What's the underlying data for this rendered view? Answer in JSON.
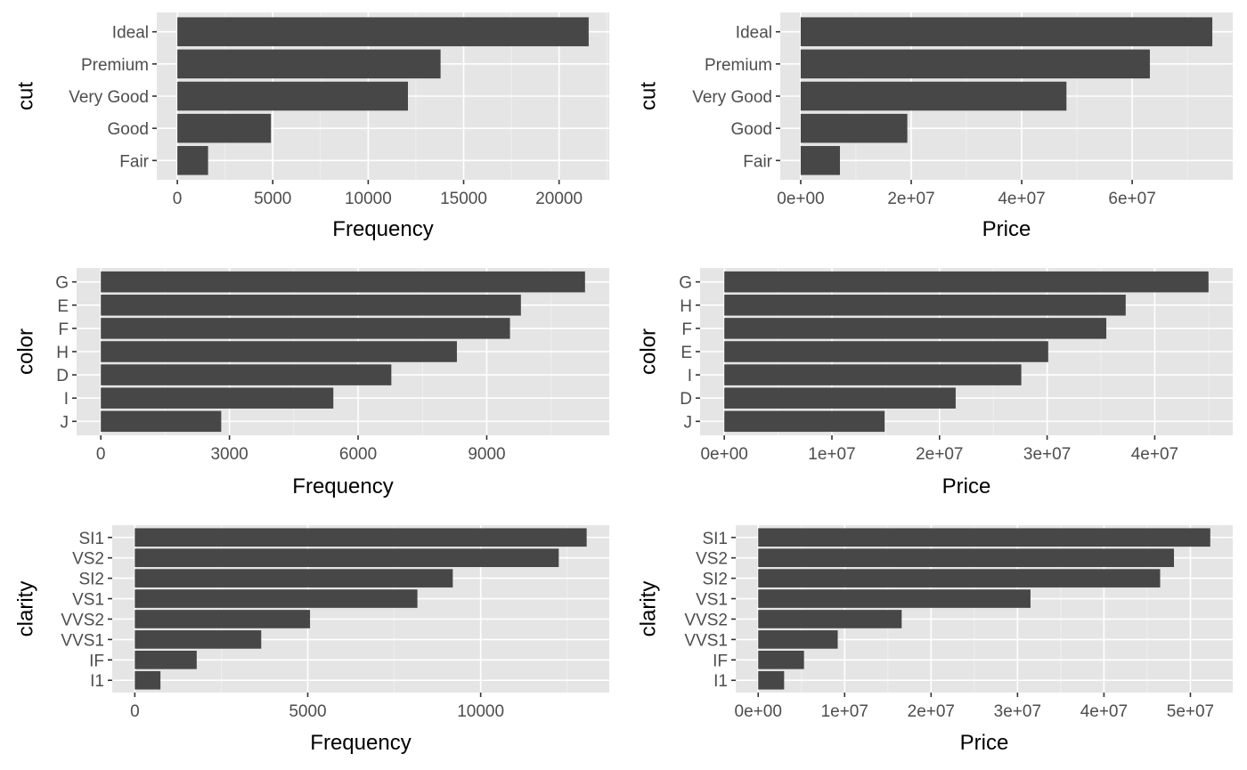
{
  "chart_data": [
    {
      "type": "bar",
      "orientation": "horizontal",
      "categories": [
        "Ideal",
        "Premium",
        "Very Good",
        "Good",
        "Fair"
      ],
      "values": [
        21551,
        13791,
        12082,
        4906,
        1610
      ],
      "xlabel": "Frequency",
      "ylabel": "cut",
      "xlim": [
        -1078,
        22629
      ],
      "xticks": [
        0,
        5000,
        10000,
        15000,
        20000
      ],
      "xtick_labels": [
        "0",
        "5000",
        "10000",
        "15000",
        "20000"
      ],
      "grid": true,
      "bar_color": "#474747"
    },
    {
      "type": "bar",
      "orientation": "horizontal",
      "categories": [
        "Ideal",
        "Premium",
        "Very Good",
        "Good",
        "Fair"
      ],
      "values": [
        74500000,
        63200000,
        48100000,
        19300000,
        7100000
      ],
      "xlabel": "Price",
      "ylabel": "cut",
      "xlim": [
        -3700000,
        78200000
      ],
      "xticks": [
        0,
        20000000,
        40000000,
        60000000
      ],
      "xtick_labels": [
        "0e+00",
        "2e+07",
        "4e+07",
        "6e+07"
      ],
      "grid": true,
      "bar_color": "#474747"
    },
    {
      "type": "bar",
      "orientation": "horizontal",
      "categories": [
        "G",
        "E",
        "F",
        "H",
        "D",
        "I",
        "J"
      ],
      "values": [
        11292,
        9797,
        9542,
        8304,
        6775,
        5422,
        2808
      ],
      "xlabel": "Frequency",
      "ylabel": "color",
      "xlim": [
        -565,
        11857
      ],
      "xticks": [
        0,
        3000,
        6000,
        9000
      ],
      "xtick_labels": [
        "0",
        "3000",
        "6000",
        "9000"
      ],
      "grid": true,
      "bar_color": "#474747"
    },
    {
      "type": "bar",
      "orientation": "horizontal",
      "categories": [
        "G",
        "H",
        "F",
        "E",
        "I",
        "D",
        "J"
      ],
      "values": [
        45000000,
        37300000,
        35500000,
        30100000,
        27600000,
        21500000,
        14900000
      ],
      "xlabel": "Price",
      "ylabel": "color",
      "xlim": [
        -2250000,
        47250000
      ],
      "xticks": [
        0,
        10000000,
        20000000,
        30000000,
        40000000
      ],
      "xtick_labels": [
        "0e+00",
        "1e+07",
        "2e+07",
        "3e+07",
        "4e+07"
      ],
      "grid": true,
      "bar_color": "#474747"
    },
    {
      "type": "bar",
      "orientation": "horizontal",
      "categories": [
        "SI1",
        "VS2",
        "SI2",
        "VS1",
        "VVS2",
        "VVS1",
        "IF",
        "I1"
      ],
      "values": [
        13065,
        12258,
        9194,
        8171,
        5066,
        3655,
        1790,
        741
      ],
      "xlabel": "Frequency",
      "ylabel": "clarity",
      "xlim": [
        -653,
        13718
      ],
      "xticks": [
        0,
        5000,
        10000
      ],
      "xtick_labels": [
        "0",
        "5000",
        "10000"
      ],
      "grid": true,
      "bar_color": "#474747"
    },
    {
      "type": "bar",
      "orientation": "horizontal",
      "categories": [
        "SI1",
        "VS2",
        "SI2",
        "VS1",
        "VVS2",
        "VVS1",
        "IF",
        "I1"
      ],
      "values": [
        52300000,
        48100000,
        46500000,
        31500000,
        16600000,
        9200000,
        5300000,
        3000000
      ],
      "xlabel": "Price",
      "ylabel": "clarity",
      "xlim": [
        -2600000,
        54900000
      ],
      "xticks": [
        0,
        10000000,
        20000000,
        30000000,
        40000000,
        50000000
      ],
      "xtick_labels": [
        "0e+00",
        "1e+07",
        "2e+07",
        "3e+07",
        "4e+07",
        "5e+07"
      ],
      "grid": true,
      "bar_color": "#474747"
    }
  ]
}
